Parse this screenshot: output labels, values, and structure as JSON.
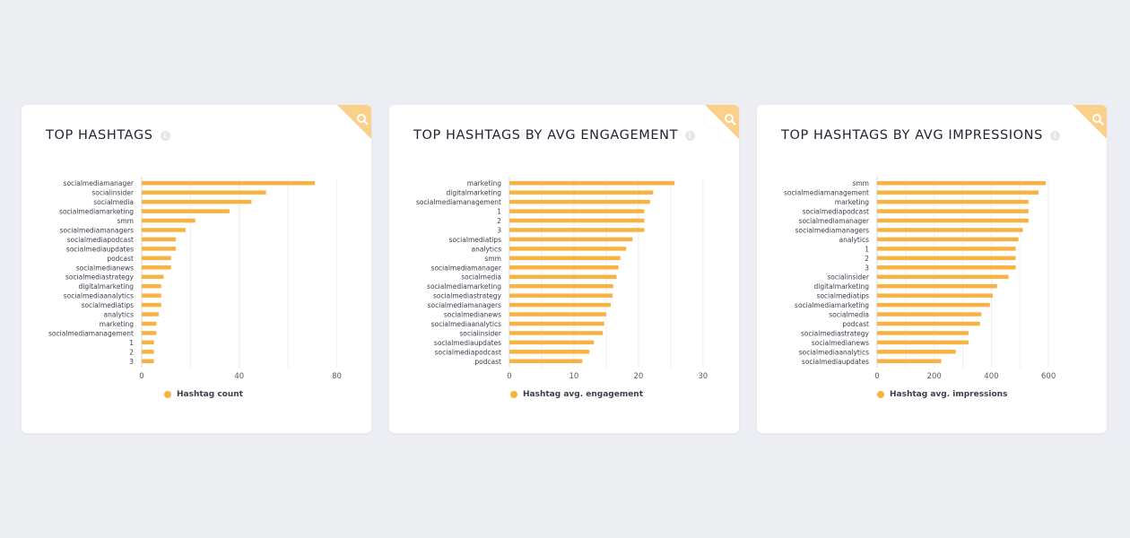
{
  "colors": {
    "bar": "#f8b241",
    "grid": "#eceef1",
    "corner": "#fbd08a"
  },
  "icons": {
    "info": "info-icon",
    "zoom": "search-icon"
  },
  "chart_data": [
    {
      "type": "bar",
      "orientation": "horizontal",
      "title": "TOP HASHTAGS",
      "categories": [
        "socialmediamanager",
        "socialinsider",
        "socialmedia",
        "socialmediamarketing",
        "smm",
        "socialmediamanagers",
        "socialmediapodcast",
        "socialmediaupdates",
        "podcast",
        "socialmedianews",
        "socialmediastrategy",
        "digitalmarketing",
        "socialmediaanalytics",
        "socialmediatips",
        "analytics",
        "marketing",
        "socialmediamanagement",
        "1",
        "2",
        "3"
      ],
      "series": [
        {
          "name": "Hashtag count",
          "values": [
            71,
            51,
            45,
            36,
            22,
            18,
            14,
            14,
            12,
            12,
            9,
            8,
            8,
            8,
            7,
            6,
            6,
            5,
            5,
            5
          ]
        }
      ],
      "xlim": [
        0,
        82
      ],
      "xticks": [
        0,
        40,
        80
      ],
      "grid": true,
      "legend": "bottom"
    },
    {
      "type": "bar",
      "orientation": "horizontal",
      "title": "TOP HASHTAGS BY AVG ENGAGEMENT",
      "categories": [
        "marketing",
        "digitalmarketing",
        "socialmediamanagement",
        "1",
        "2",
        "3",
        "socialmediatips",
        "analytics",
        "smm",
        "socialmediamanager",
        "socialmedia",
        "socialmediamarketing",
        "socialmediastrategy",
        "socialmediamanagers",
        "socialmedianews",
        "socialmediaanalytics",
        "socialinsider",
        "socialmediaupdates",
        "socialmediapodcast",
        "podcast"
      ],
      "series": [
        {
          "name": "Hashtag avg. engagement",
          "values": [
            25.6,
            22.3,
            21.8,
            20.9,
            20.9,
            20.9,
            19.1,
            18.1,
            17.2,
            16.9,
            16.6,
            16.1,
            16.0,
            15.7,
            15.0,
            14.7,
            14.5,
            13.1,
            12.4,
            11.3
          ]
        }
      ],
      "xlim": [
        0,
        31
      ],
      "xticks": [
        0,
        10,
        20,
        30
      ],
      "grid": true,
      "legend": "bottom"
    },
    {
      "type": "bar",
      "orientation": "horizontal",
      "title": "TOP HASHTAGS BY AVG IMPRESSIONS",
      "categories": [
        "smm",
        "socialmediamanagement",
        "marketing",
        "socialmediapodcast",
        "socialmediamanager",
        "socialmediamanagers",
        "analytics",
        "1",
        "2",
        "3",
        "socialinsider",
        "digitalmarketing",
        "socialmediatips",
        "socialmediamarketing",
        "socialmedia",
        "podcast",
        "socialmediastrategy",
        "socialmedianews",
        "socialmediaanalytics",
        "socialmediaupdates"
      ],
      "series": [
        {
          "name": "Hashtag avg. impressions",
          "values": [
            590,
            565,
            530,
            530,
            530,
            510,
            495,
            485,
            485,
            485,
            460,
            420,
            405,
            395,
            365,
            360,
            320,
            320,
            275,
            225
          ]
        }
      ],
      "xlim": [
        0,
        700
      ],
      "xticks": [
        0,
        200,
        400,
        600
      ],
      "grid": true,
      "legend": "bottom"
    }
  ]
}
